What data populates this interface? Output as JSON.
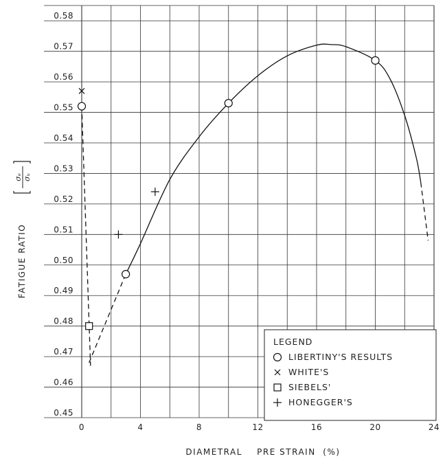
{
  "chart_data": {
    "type": "scatter",
    "xlabel": "DIAMETRAL    PRE STRAIN  (%)",
    "ylabel": "FATIGUE RATIO",
    "ylabel_symbol_num": "σₑ",
    "ylabel_symbol_den": "σᵤ",
    "xlim": [
      0,
      24
    ],
    "ylim": [
      0.45,
      0.585
    ],
    "x_ticks": [
      0,
      4,
      8,
      12,
      16,
      20,
      24
    ],
    "x_tick_labels": [
      "0",
      "4",
      "8",
      "12",
      "16",
      "20",
      "24"
    ],
    "y_ticks": [
      0.45,
      0.46,
      0.47,
      0.48,
      0.49,
      0.5,
      0.51,
      0.52,
      0.53,
      0.54,
      0.55,
      0.56,
      0.57,
      0.58
    ],
    "y_tick_labels": [
      "0.45",
      "0.46",
      "0.47",
      "0.48",
      "0.49",
      "0.50",
      "0.51",
      "0.52",
      "0.53",
      "0.54",
      "0.55",
      "0.56",
      "0.57",
      "0.58"
    ],
    "grid": true,
    "series": [
      {
        "name": "LIBERTINY'S RESULTS",
        "marker": "circle",
        "x": [
          0,
          3,
          10,
          20
        ],
        "y": [
          0.552,
          0.497,
          0.553,
          0.567
        ]
      },
      {
        "name": "WHITE'S",
        "marker": "x",
        "x": [
          0
        ],
        "y": [
          0.557
        ]
      },
      {
        "name": "SIEBELS'",
        "marker": "square",
        "x": [
          0.5
        ],
        "y": [
          0.48
        ]
      },
      {
        "name": "HONEGGER'S",
        "marker": "plus",
        "x": [
          2.5,
          5
        ],
        "y": [
          0.51,
          0.524
        ]
      }
    ],
    "curve": {
      "solid": [
        [
          4,
          0.507
        ],
        [
          6,
          0.528
        ],
        [
          8,
          0.542
        ],
        [
          10,
          0.553
        ],
        [
          12,
          0.562
        ],
        [
          14,
          0.5685
        ],
        [
          16,
          0.572
        ],
        [
          17,
          0.5722
        ],
        [
          18,
          0.5715
        ],
        [
          20,
          0.567
        ],
        [
          21,
          0.561
        ],
        [
          22,
          0.549
        ],
        [
          22.8,
          0.535
        ],
        [
          23.1,
          0.527
        ]
      ],
      "dashed_tail": [
        [
          23.1,
          0.527
        ],
        [
          23.6,
          0.508
        ]
      ],
      "solid_lower": [
        [
          3,
          0.497
        ],
        [
          4,
          0.507
        ]
      ],
      "dashed_lower": [
        [
          0.5,
          0.468
        ],
        [
          3,
          0.497
        ]
      ],
      "dashed_left": [
        [
          0,
          0.552
        ],
        [
          0.6,
          0.467
        ]
      ]
    },
    "legend": {
      "title": "LEGEND",
      "position": "bottom-right",
      "entries": [
        "LIBERTINY'S RESULTS",
        "WHITE'S",
        "SIEBELS'",
        "HONEGGER'S"
      ]
    }
  }
}
